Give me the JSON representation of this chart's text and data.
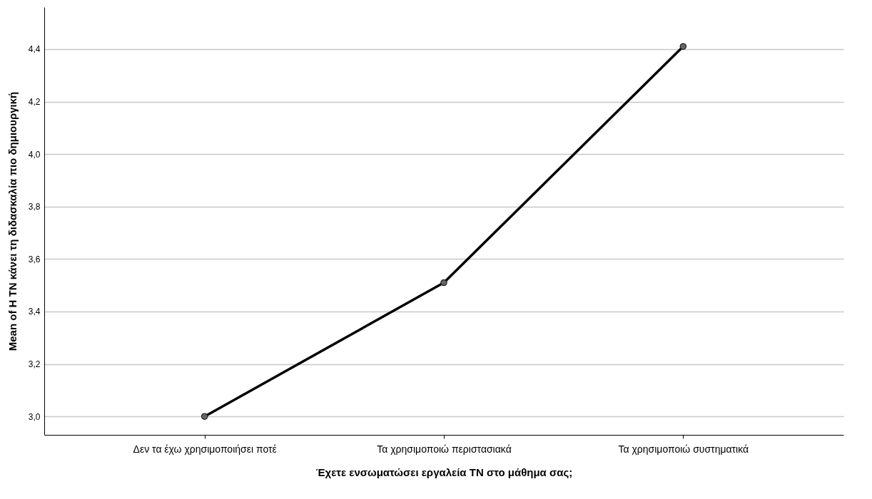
{
  "chart_data": {
    "type": "line",
    "xlabel": "Έχετε ενσωματώσει εργαλεία ΤΝ στο μάθημα σας;",
    "ylabel": "Mean of Η ΤΝ κάνει τη διδασκαλία πιο δημιουργική",
    "categories": [
      "Δεν τα έχω χρησιμοποιήσει ποτέ",
      "Τα χρησιμοποιώ περιστασιακά",
      "Τα χρησιμοποιώ συστηματικά"
    ],
    "series": [
      {
        "color": "#000000",
        "values": [
          3.0,
          3.51,
          4.41
        ]
      }
    ],
    "ylim": [
      2.93,
      4.56
    ],
    "yticks": [
      {
        "value": 3,
        "label": "3,0"
      },
      {
        "value": 3.2,
        "label": "3,2"
      },
      {
        "value": 3.4,
        "label": "3,4"
      },
      {
        "value": 3.6,
        "label": "3,6"
      },
      {
        "value": 3.8,
        "label": "3,8"
      },
      {
        "value": 4,
        "label": "4,0"
      },
      {
        "value": 4.2,
        "label": "4,2"
      },
      {
        "value": 4.4,
        "label": "4,4"
      }
    ],
    "grid": "y",
    "marker": "circle",
    "line_style": "solid",
    "legend": false
  }
}
